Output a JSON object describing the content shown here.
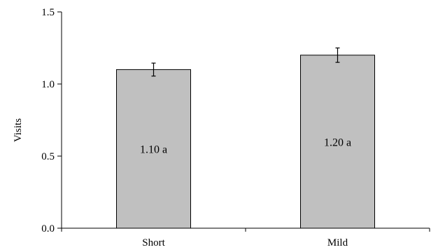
{
  "chart_data": {
    "type": "bar",
    "ylabel": "Visits",
    "xlabel": "",
    "ylim": [
      0,
      1.5
    ],
    "yticks": [
      0.0,
      0.5,
      1.0,
      1.5
    ],
    "ytick_labels": [
      "0.0",
      "0.5",
      "1.0",
      "1.5"
    ],
    "categories": [
      "Short",
      "Mild"
    ],
    "values": [
      1.1,
      1.2
    ],
    "errors": [
      0.045,
      0.05
    ],
    "data_labels": [
      "1.10 a",
      "1.20 a"
    ],
    "bar_color": "#c0c0c0",
    "grid": false,
    "legend": "none"
  }
}
